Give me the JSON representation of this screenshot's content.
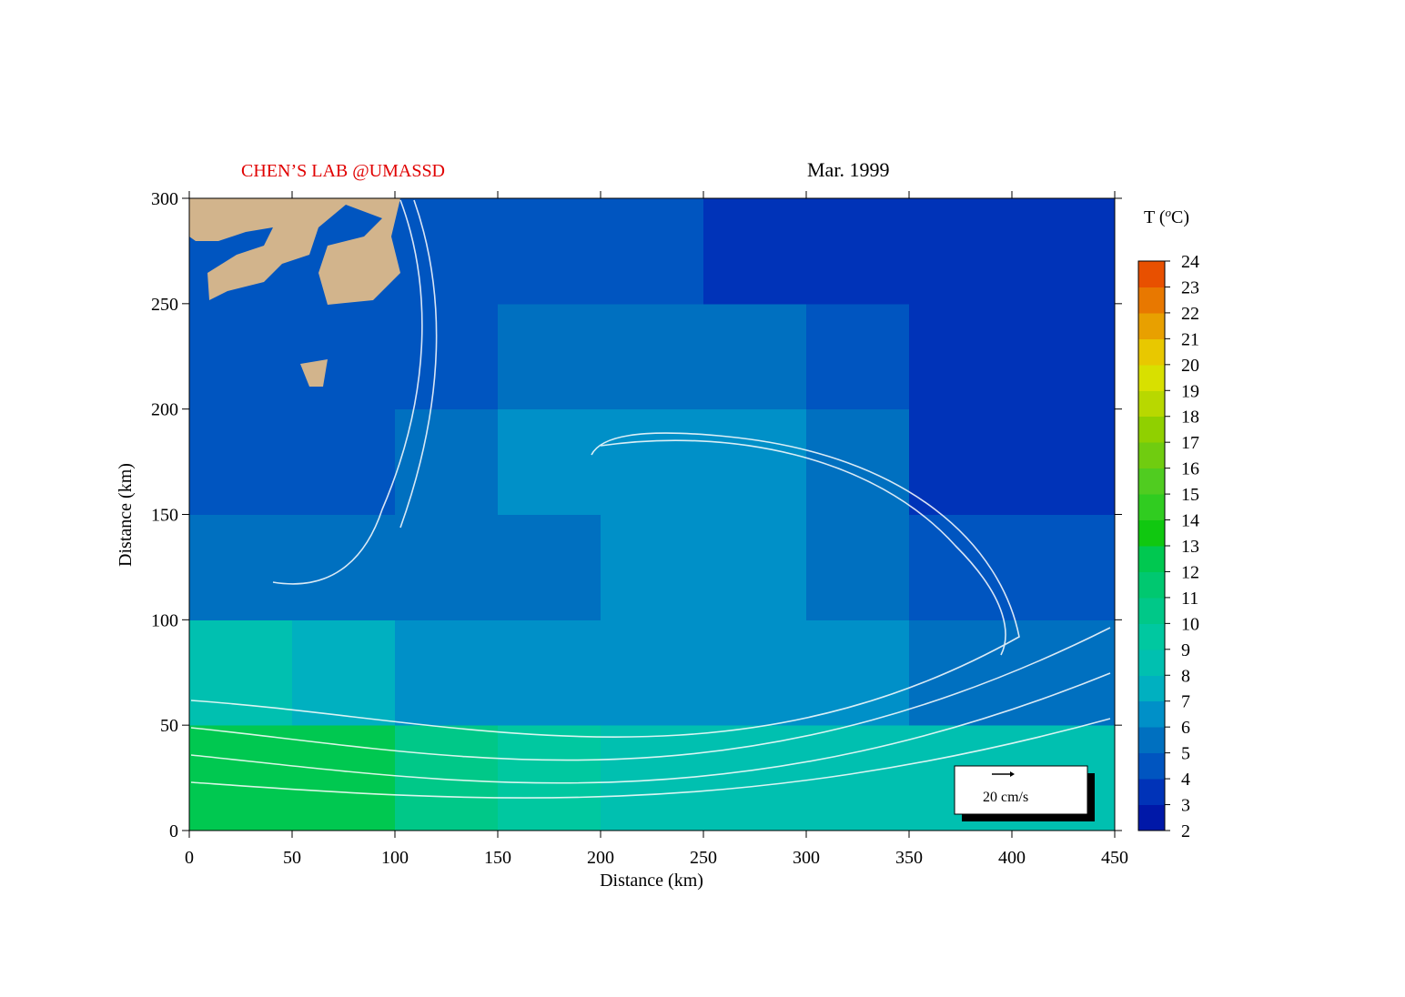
{
  "chart_data": {
    "type": "heatmap",
    "lab_title": "CHEN’S  LAB @UMASSD",
    "title": "Mar. 1999",
    "x_label": "Distance (km)",
    "y_label": "Distance (km)",
    "xlim": [
      0,
      450
    ],
    "ylim": [
      0,
      300
    ],
    "xticks": [
      0,
      50,
      100,
      150,
      200,
      250,
      300,
      350,
      400,
      450
    ],
    "yticks": [
      0,
      50,
      100,
      150,
      200,
      250,
      300
    ],
    "temperature": {
      "x_edges": [
        0,
        50,
        100,
        150,
        200,
        250,
        300,
        350,
        400,
        450
      ],
      "y_edges": [
        0,
        50,
        100,
        150,
        200,
        250,
        300
      ],
      "values": [
        [
          12,
          12,
          10,
          9,
          8,
          8,
          8,
          8,
          8
        ],
        [
          8,
          7,
          6,
          6,
          6,
          6,
          6,
          5,
          5
        ],
        [
          5,
          5,
          5,
          5,
          6,
          6,
          5,
          4,
          4
        ],
        [
          4,
          4,
          5,
          6,
          6,
          6,
          5,
          3,
          3
        ],
        [
          4,
          4,
          4,
          5,
          5,
          5,
          4,
          3,
          3
        ],
        [
          4,
          4,
          4,
          4,
          4,
          3,
          3,
          3,
          3
        ]
      ]
    },
    "colorbar": {
      "title": "T (",
      "title_sup": "o",
      "title_end": "C)",
      "lim": [
        2,
        24
      ],
      "ticks": [
        2,
        3,
        4,
        5,
        6,
        7,
        8,
        9,
        10,
        11,
        12,
        13,
        14,
        15,
        16,
        17,
        18,
        19,
        20,
        21,
        22,
        23,
        24
      ],
      "colors": [
        "#0018a8",
        "#0033b8",
        "#0055c0",
        "#0070c0",
        "#0090c8",
        "#00b0c0",
        "#00c0b0",
        "#00c8a0",
        "#00c888",
        "#00c870",
        "#00c850",
        "#10c810",
        "#30cc20",
        "#50cc20",
        "#70cc10",
        "#90d000",
        "#b8d800",
        "#d8e000",
        "#e8c800",
        "#e8a000",
        "#e87800",
        "#e85000"
      ]
    },
    "scale_label": "20 cm/s"
  }
}
